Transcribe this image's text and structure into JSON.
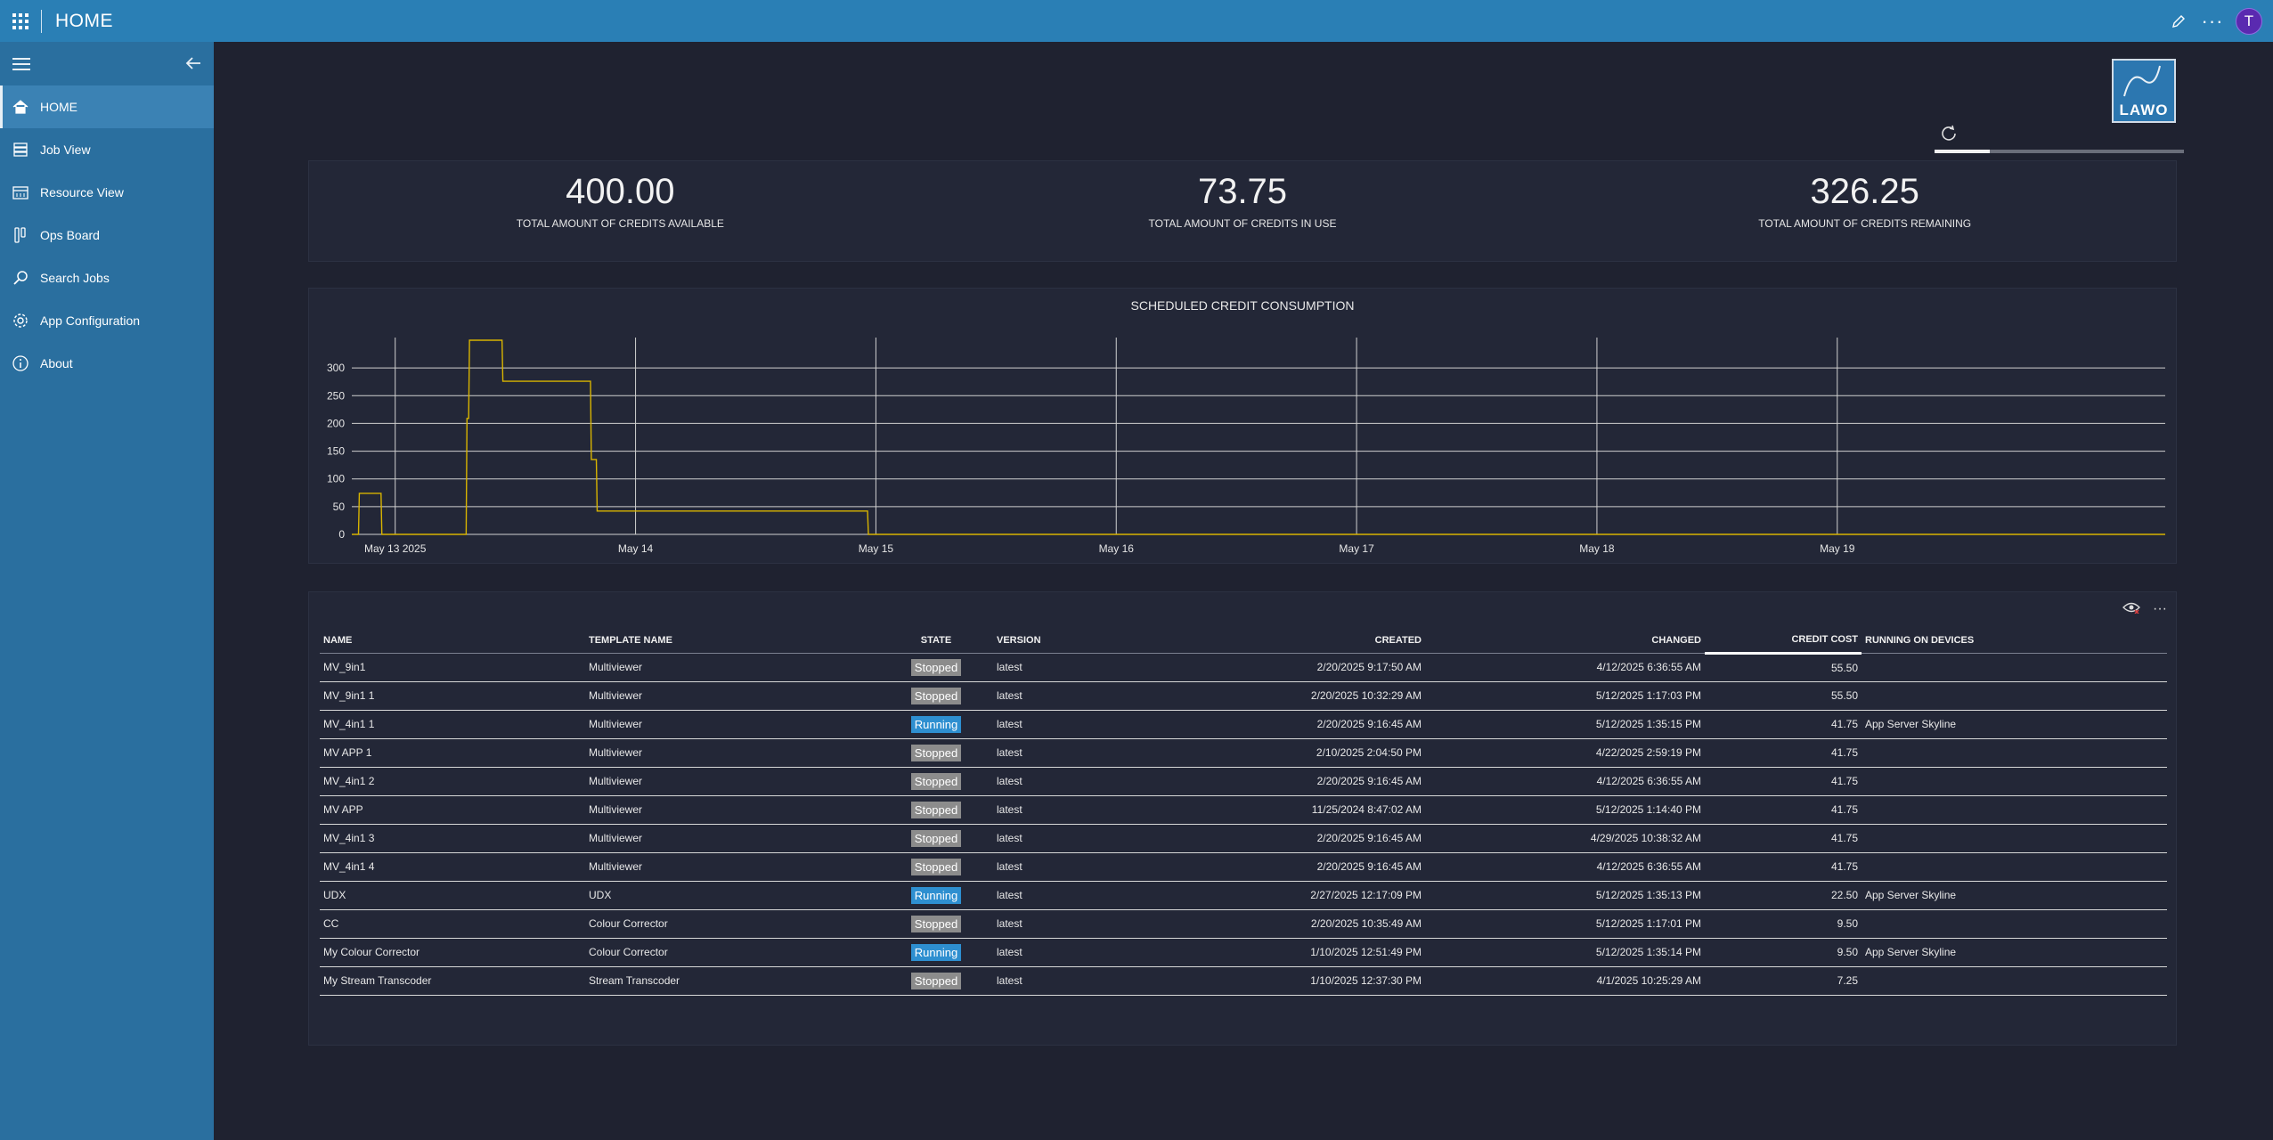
{
  "app": {
    "title": "HOME",
    "avatar": "T"
  },
  "nav": {
    "items": [
      {
        "label": "HOME",
        "icon": "home-icon",
        "active": true
      },
      {
        "label": "Job View",
        "icon": "job-view-icon"
      },
      {
        "label": "Resource View",
        "icon": "calendar-icon"
      },
      {
        "label": "Ops Board",
        "icon": "ops-board-icon"
      },
      {
        "label": "Search Jobs",
        "icon": "search-icon"
      },
      {
        "label": "App Configuration",
        "icon": "gear-icon"
      },
      {
        "label": "About",
        "icon": "info-icon"
      }
    ]
  },
  "brand": {
    "logo_text": "LAWO",
    "color": "#2c77b0"
  },
  "loading_progress": 0.22,
  "kpis": [
    {
      "value": "400.00",
      "label": "TOTAL AMOUNT OF CREDITS AVAILABLE"
    },
    {
      "value": "73.75",
      "label": "TOTAL AMOUNT OF CREDITS IN USE"
    },
    {
      "value": "326.25",
      "label": "TOTAL AMOUNT OF CREDITS REMAINING"
    }
  ],
  "chart_data": {
    "type": "line",
    "title": "SCHEDULED CREDIT CONSUMPTION",
    "xlabel": "",
    "ylabel": "",
    "ylim": [
      0,
      350
    ],
    "yticks": [
      0,
      50,
      100,
      150,
      200,
      250,
      300
    ],
    "xlim": [
      "2025-05-12 19:40",
      "2025-05-20 08:45"
    ],
    "xticks": [
      "May 13 2025",
      "May 14",
      "May 15",
      "May 16",
      "May 17",
      "May 18",
      "May 19"
    ],
    "grid": true,
    "series": [
      {
        "color": "#d8b400",
        "points": [
          [
            "2025-05-12 19:40",
            0
          ],
          [
            "2025-05-12 20:20",
            0
          ],
          [
            "2025-05-12 20:25",
            74
          ],
          [
            "2025-05-12 22:35",
            74
          ],
          [
            "2025-05-12 22:40",
            0
          ],
          [
            "2025-05-13 07:05",
            0
          ],
          [
            "2025-05-13 07:10",
            209
          ],
          [
            "2025-05-13 07:20",
            209
          ],
          [
            "2025-05-13 07:25",
            350
          ],
          [
            "2025-05-13 10:40",
            350
          ],
          [
            "2025-05-13 10:45",
            276
          ],
          [
            "2025-05-13 19:30",
            276
          ],
          [
            "2025-05-13 19:35",
            135
          ],
          [
            "2025-05-13 20:05",
            135
          ],
          [
            "2025-05-13 20:10",
            42
          ],
          [
            "2025-05-14 23:10",
            42
          ],
          [
            "2025-05-14 23:15",
            0
          ],
          [
            "2025-05-20 08:45",
            0
          ]
        ]
      }
    ]
  },
  "jobs": {
    "columns": [
      "NAME",
      "TEMPLATE NAME",
      "STATE",
      "VERSION",
      "CREATED",
      "CHANGED",
      "CREDIT COST",
      "RUNNING ON DEVICES"
    ],
    "rows": [
      [
        "MV_9in1",
        "Multiviewer",
        "Stopped",
        "latest",
        "2/20/2025 9:17:50 AM",
        "4/12/2025 6:36:55 AM",
        "55.50",
        ""
      ],
      [
        "MV_9in1 1",
        "Multiviewer",
        "Stopped",
        "latest",
        "2/20/2025 10:32:29 AM",
        "5/12/2025 1:17:03 PM",
        "55.50",
        ""
      ],
      [
        "MV_4in1 1",
        "Multiviewer",
        "Running",
        "latest",
        "2/20/2025 9:16:45 AM",
        "5/12/2025 1:35:15 PM",
        "41.75",
        "App Server Skyline"
      ],
      [
        "MV APP 1",
        "Multiviewer",
        "Stopped",
        "latest",
        "2/10/2025 2:04:50 PM",
        "4/22/2025 2:59:19 PM",
        "41.75",
        ""
      ],
      [
        "MV_4in1 2",
        "Multiviewer",
        "Stopped",
        "latest",
        "2/20/2025 9:16:45 AM",
        "4/12/2025 6:36:55 AM",
        "41.75",
        ""
      ],
      [
        "MV APP",
        "Multiviewer",
        "Stopped",
        "latest",
        "11/25/2024 8:47:02 AM",
        "5/12/2025 1:14:40 PM",
        "41.75",
        ""
      ],
      [
        "MV_4in1 3",
        "Multiviewer",
        "Stopped",
        "latest",
        "2/20/2025 9:16:45 AM",
        "4/29/2025 10:38:32 AM",
        "41.75",
        ""
      ],
      [
        "MV_4in1 4",
        "Multiviewer",
        "Stopped",
        "latest",
        "2/20/2025 9:16:45 AM",
        "4/12/2025 6:36:55 AM",
        "41.75",
        ""
      ],
      [
        "UDX",
        "UDX",
        "Running",
        "latest",
        "2/27/2025 12:17:09 PM",
        "5/12/2025 1:35:13 PM",
        "22.50",
        "App Server Skyline"
      ],
      [
        "CC",
        "Colour Corrector",
        "Stopped",
        "latest",
        "2/20/2025 10:35:49 AM",
        "5/12/2025 1:17:01 PM",
        "9.50",
        ""
      ],
      [
        "My Colour Corrector",
        "Colour Corrector",
        "Running",
        "latest",
        "1/10/2025 12:51:49 PM",
        "5/12/2025 1:35:14 PM",
        "9.50",
        "App Server Skyline"
      ],
      [
        "My Stream Transcoder",
        "Stream Transcoder",
        "Stopped",
        "latest",
        "1/10/2025 12:37:30 PM",
        "4/1/2025 10:25:29 AM",
        "7.25",
        ""
      ]
    ]
  }
}
